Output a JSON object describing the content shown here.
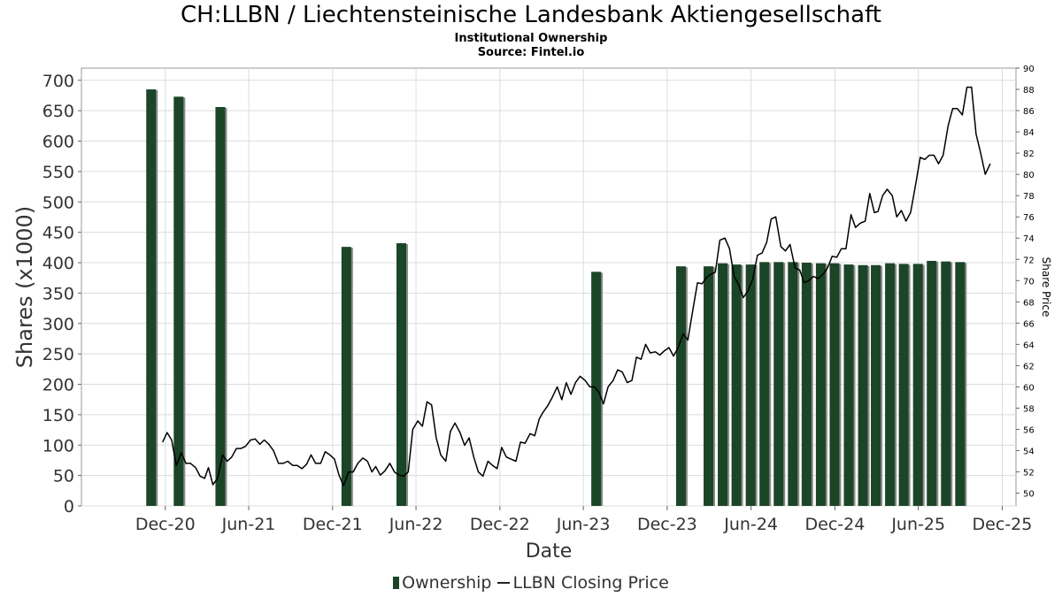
{
  "chart_data": {
    "type": "bar+line",
    "title": "CH:LLBN / Liechtensteinische Landesbank Aktiengesellschaft",
    "subtitle": "Institutional Ownership",
    "source": "Source: Fintel.io",
    "xlabel": "Date",
    "ylabel": "Shares (x1000)",
    "y2label": "Share Price",
    "x_ticks": [
      "Dec-20",
      "Jun-21",
      "Dec-21",
      "Jun-22",
      "Dec-22",
      "Jun-23",
      "Dec-23",
      "Jun-24",
      "Dec-24",
      "Jun-25",
      "Dec-25"
    ],
    "x_range": [
      "2020-06-01",
      "2025-12-31"
    ],
    "ylim": [
      0,
      720
    ],
    "y_ticks": [
      0,
      50,
      100,
      150,
      200,
      250,
      300,
      350,
      400,
      450,
      500,
      550,
      600,
      650,
      700
    ],
    "y2lim": [
      48.8,
      90
    ],
    "y2_ticks": [
      50,
      52,
      54,
      56,
      58,
      60,
      62,
      64,
      66,
      68,
      70,
      72,
      74,
      76,
      78,
      80,
      82,
      84,
      86,
      88,
      90
    ],
    "grid": true,
    "legend_position": "bottom",
    "series": [
      {
        "name": "Ownership",
        "kind": "bar",
        "color": "#1b4527",
        "points": [
          {
            "date": "2020-11-01",
            "value": 685
          },
          {
            "date": "2020-12-31",
            "value": 673
          },
          {
            "date": "2021-04-01",
            "value": 656
          },
          {
            "date": "2022-01-01",
            "value": 426
          },
          {
            "date": "2022-05-01",
            "value": 432
          },
          {
            "date": "2023-06-30",
            "value": 385
          },
          {
            "date": "2024-01-01",
            "value": 394
          },
          {
            "date": "2024-03-01",
            "value": 394
          },
          {
            "date": "2024-04-01",
            "value": 399
          },
          {
            "date": "2024-05-01",
            "value": 397
          },
          {
            "date": "2024-06-01",
            "value": 397
          },
          {
            "date": "2024-07-01",
            "value": 401
          },
          {
            "date": "2024-08-01",
            "value": 401
          },
          {
            "date": "2024-09-01",
            "value": 401
          },
          {
            "date": "2024-10-01",
            "value": 400
          },
          {
            "date": "2024-11-01",
            "value": 399
          },
          {
            "date": "2024-12-01",
            "value": 399
          },
          {
            "date": "2025-01-01",
            "value": 397
          },
          {
            "date": "2025-02-01",
            "value": 396
          },
          {
            "date": "2025-03-01",
            "value": 396
          },
          {
            "date": "2025-04-01",
            "value": 399
          },
          {
            "date": "2025-05-01",
            "value": 398
          },
          {
            "date": "2025-06-01",
            "value": 398
          },
          {
            "date": "2025-07-01",
            "value": 403
          },
          {
            "date": "2025-08-01",
            "value": 402
          },
          {
            "date": "2025-09-01",
            "value": 401
          }
        ]
      },
      {
        "name": "LLBN Closing Price",
        "kind": "line",
        "color": "#000000",
        "points": [
          {
            "date": "2020-11-25",
            "value": 54.8
          },
          {
            "date": "2020-12-05",
            "value": 55.7
          },
          {
            "date": "2020-12-15",
            "value": 55.0
          },
          {
            "date": "2020-12-25",
            "value": 52.6
          },
          {
            "date": "2021-01-05",
            "value": 53.8
          },
          {
            "date": "2021-01-15",
            "value": 52.8
          },
          {
            "date": "2021-01-25",
            "value": 52.8
          },
          {
            "date": "2021-02-05",
            "value": 52.4
          },
          {
            "date": "2021-02-15",
            "value": 51.6
          },
          {
            "date": "2021-02-25",
            "value": 51.4
          },
          {
            "date": "2021-03-05",
            "value": 52.4
          },
          {
            "date": "2021-03-15",
            "value": 50.8
          },
          {
            "date": "2021-03-25",
            "value": 51.4
          },
          {
            "date": "2021-04-05",
            "value": 53.6
          },
          {
            "date": "2021-04-15",
            "value": 53.0
          },
          {
            "date": "2021-04-25",
            "value": 53.4
          },
          {
            "date": "2021-05-05",
            "value": 54.2
          },
          {
            "date": "2021-05-15",
            "value": 54.2
          },
          {
            "date": "2021-05-25",
            "value": 54.4
          },
          {
            "date": "2021-06-05",
            "value": 55.0
          },
          {
            "date": "2021-06-15",
            "value": 55.1
          },
          {
            "date": "2021-06-25",
            "value": 54.6
          },
          {
            "date": "2021-07-05",
            "value": 55.0
          },
          {
            "date": "2021-07-15",
            "value": 54.6
          },
          {
            "date": "2021-07-25",
            "value": 54.0
          },
          {
            "date": "2021-08-05",
            "value": 52.8
          },
          {
            "date": "2021-08-15",
            "value": 52.8
          },
          {
            "date": "2021-08-25",
            "value": 53.0
          },
          {
            "date": "2021-09-05",
            "value": 52.6
          },
          {
            "date": "2021-09-15",
            "value": 52.6
          },
          {
            "date": "2021-09-25",
            "value": 52.3
          },
          {
            "date": "2021-10-05",
            "value": 52.7
          },
          {
            "date": "2021-10-15",
            "value": 53.6
          },
          {
            "date": "2021-10-25",
            "value": 52.8
          },
          {
            "date": "2021-11-05",
            "value": 52.8
          },
          {
            "date": "2021-11-15",
            "value": 53.9
          },
          {
            "date": "2021-11-25",
            "value": 53.6
          },
          {
            "date": "2021-12-05",
            "value": 53.2
          },
          {
            "date": "2021-12-15",
            "value": 51.7
          },
          {
            "date": "2021-12-25",
            "value": 50.7
          },
          {
            "date": "2022-01-05",
            "value": 52.0
          },
          {
            "date": "2022-01-15",
            "value": 52.0
          },
          {
            "date": "2022-01-25",
            "value": 52.8
          },
          {
            "date": "2022-02-05",
            "value": 53.3
          },
          {
            "date": "2022-02-15",
            "value": 53.0
          },
          {
            "date": "2022-02-25",
            "value": 52.0
          },
          {
            "date": "2022-03-05",
            "value": 52.5
          },
          {
            "date": "2022-03-15",
            "value": 51.7
          },
          {
            "date": "2022-03-25",
            "value": 52.1
          },
          {
            "date": "2022-04-05",
            "value": 52.8
          },
          {
            "date": "2022-04-15",
            "value": 52.0
          },
          {
            "date": "2022-04-25",
            "value": 51.7
          },
          {
            "date": "2022-05-05",
            "value": 51.6
          },
          {
            "date": "2022-05-15",
            "value": 52.0
          },
          {
            "date": "2022-05-25",
            "value": 56.0
          },
          {
            "date": "2022-06-05",
            "value": 56.8
          },
          {
            "date": "2022-06-15",
            "value": 56.3
          },
          {
            "date": "2022-06-25",
            "value": 58.6
          },
          {
            "date": "2022-07-05",
            "value": 58.3
          },
          {
            "date": "2022-07-15",
            "value": 55.2
          },
          {
            "date": "2022-07-25",
            "value": 53.6
          },
          {
            "date": "2022-08-05",
            "value": 53.0
          },
          {
            "date": "2022-08-15",
            "value": 55.8
          },
          {
            "date": "2022-08-25",
            "value": 56.6
          },
          {
            "date": "2022-09-05",
            "value": 55.7
          },
          {
            "date": "2022-09-15",
            "value": 54.5
          },
          {
            "date": "2022-09-25",
            "value": 55.2
          },
          {
            "date": "2022-10-05",
            "value": 53.4
          },
          {
            "date": "2022-10-15",
            "value": 52.0
          },
          {
            "date": "2022-10-25",
            "value": 51.6
          },
          {
            "date": "2022-11-05",
            "value": 53.0
          },
          {
            "date": "2022-11-15",
            "value": 52.6
          },
          {
            "date": "2022-11-25",
            "value": 52.3
          },
          {
            "date": "2022-12-05",
            "value": 54.3
          },
          {
            "date": "2022-12-15",
            "value": 53.4
          },
          {
            "date": "2022-12-25",
            "value": 53.2
          },
          {
            "date": "2023-01-05",
            "value": 53.0
          },
          {
            "date": "2023-01-15",
            "value": 54.8
          },
          {
            "date": "2023-01-25",
            "value": 54.7
          },
          {
            "date": "2023-02-05",
            "value": 55.6
          },
          {
            "date": "2023-02-15",
            "value": 55.4
          },
          {
            "date": "2023-02-25",
            "value": 57.0
          },
          {
            "date": "2023-03-05",
            "value": 57.6
          },
          {
            "date": "2023-03-15",
            "value": 58.2
          },
          {
            "date": "2023-03-25",
            "value": 59.0
          },
          {
            "date": "2023-04-05",
            "value": 60.0
          },
          {
            "date": "2023-04-15",
            "value": 58.8
          },
          {
            "date": "2023-04-25",
            "value": 60.4
          },
          {
            "date": "2023-05-05",
            "value": 59.3
          },
          {
            "date": "2023-05-15",
            "value": 60.4
          },
          {
            "date": "2023-05-25",
            "value": 61.0
          },
          {
            "date": "2023-06-05",
            "value": 60.6
          },
          {
            "date": "2023-06-15",
            "value": 60.0
          },
          {
            "date": "2023-06-25",
            "value": 60.0
          },
          {
            "date": "2023-07-05",
            "value": 59.5
          },
          {
            "date": "2023-07-15",
            "value": 58.4
          },
          {
            "date": "2023-07-25",
            "value": 60.0
          },
          {
            "date": "2023-08-05",
            "value": 60.6
          },
          {
            "date": "2023-08-15",
            "value": 61.6
          },
          {
            "date": "2023-08-25",
            "value": 61.4
          },
          {
            "date": "2023-09-05",
            "value": 60.4
          },
          {
            "date": "2023-09-15",
            "value": 60.6
          },
          {
            "date": "2023-09-25",
            "value": 62.8
          },
          {
            "date": "2023-10-05",
            "value": 62.6
          },
          {
            "date": "2023-10-15",
            "value": 64.0
          },
          {
            "date": "2023-10-25",
            "value": 63.2
          },
          {
            "date": "2023-11-05",
            "value": 63.3
          },
          {
            "date": "2023-11-15",
            "value": 63.0
          },
          {
            "date": "2023-11-25",
            "value": 63.4
          },
          {
            "date": "2023-12-05",
            "value": 63.7
          },
          {
            "date": "2023-12-15",
            "value": 62.9
          },
          {
            "date": "2023-12-25",
            "value": 63.7
          },
          {
            "date": "2024-01-05",
            "value": 65.0
          },
          {
            "date": "2024-01-15",
            "value": 64.4
          },
          {
            "date": "2024-01-25",
            "value": 67.0
          },
          {
            "date": "2024-02-05",
            "value": 69.8
          },
          {
            "date": "2024-02-15",
            "value": 69.7
          },
          {
            "date": "2024-02-25",
            "value": 70.3
          },
          {
            "date": "2024-03-05",
            "value": 70.6
          },
          {
            "date": "2024-03-15",
            "value": 70.8
          },
          {
            "date": "2024-03-25",
            "value": 73.8
          },
          {
            "date": "2024-04-05",
            "value": 74.0
          },
          {
            "date": "2024-04-15",
            "value": 73.0
          },
          {
            "date": "2024-04-25",
            "value": 70.4
          },
          {
            "date": "2024-05-05",
            "value": 69.6
          },
          {
            "date": "2024-05-15",
            "value": 68.4
          },
          {
            "date": "2024-05-25",
            "value": 69.0
          },
          {
            "date": "2024-06-05",
            "value": 70.2
          },
          {
            "date": "2024-06-15",
            "value": 72.4
          },
          {
            "date": "2024-06-25",
            "value": 72.6
          },
          {
            "date": "2024-07-05",
            "value": 73.6
          },
          {
            "date": "2024-07-15",
            "value": 75.8
          },
          {
            "date": "2024-07-25",
            "value": 76.0
          },
          {
            "date": "2024-08-05",
            "value": 73.2
          },
          {
            "date": "2024-08-15",
            "value": 72.8
          },
          {
            "date": "2024-08-25",
            "value": 73.4
          },
          {
            "date": "2024-09-05",
            "value": 71.2
          },
          {
            "date": "2024-09-15",
            "value": 71.0
          },
          {
            "date": "2024-09-25",
            "value": 69.8
          },
          {
            "date": "2024-10-05",
            "value": 70.0
          },
          {
            "date": "2024-10-15",
            "value": 70.4
          },
          {
            "date": "2024-10-25",
            "value": 70.2
          },
          {
            "date": "2024-11-05",
            "value": 70.6
          },
          {
            "date": "2024-11-15",
            "value": 71.2
          },
          {
            "date": "2024-11-25",
            "value": 72.3
          },
          {
            "date": "2024-12-05",
            "value": 72.2
          },
          {
            "date": "2024-12-15",
            "value": 73.0
          },
          {
            "date": "2024-12-25",
            "value": 73.0
          },
          {
            "date": "2025-01-05",
            "value": 76.2
          },
          {
            "date": "2025-01-15",
            "value": 75.0
          },
          {
            "date": "2025-01-25",
            "value": 75.4
          },
          {
            "date": "2025-02-05",
            "value": 75.6
          },
          {
            "date": "2025-02-15",
            "value": 78.2
          },
          {
            "date": "2025-02-25",
            "value": 76.4
          },
          {
            "date": "2025-03-05",
            "value": 76.5
          },
          {
            "date": "2025-03-15",
            "value": 78.0
          },
          {
            "date": "2025-03-25",
            "value": 78.6
          },
          {
            "date": "2025-04-05",
            "value": 78.0
          },
          {
            "date": "2025-04-15",
            "value": 76.0
          },
          {
            "date": "2025-04-25",
            "value": 76.6
          },
          {
            "date": "2025-05-05",
            "value": 75.6
          },
          {
            "date": "2025-05-15",
            "value": 76.4
          },
          {
            "date": "2025-05-25",
            "value": 78.8
          },
          {
            "date": "2025-06-05",
            "value": 81.6
          },
          {
            "date": "2025-06-15",
            "value": 81.4
          },
          {
            "date": "2025-06-25",
            "value": 81.8
          },
          {
            "date": "2025-07-05",
            "value": 81.8
          },
          {
            "date": "2025-07-15",
            "value": 81.0
          },
          {
            "date": "2025-07-25",
            "value": 81.8
          },
          {
            "date": "2025-08-05",
            "value": 84.6
          },
          {
            "date": "2025-08-15",
            "value": 86.2
          },
          {
            "date": "2025-08-25",
            "value": 86.2
          },
          {
            "date": "2025-09-05",
            "value": 85.6
          },
          {
            "date": "2025-09-15",
            "value": 88.2
          },
          {
            "date": "2025-09-25",
            "value": 88.2
          },
          {
            "date": "2025-10-05",
            "value": 83.8
          },
          {
            "date": "2025-10-15",
            "value": 82.0
          },
          {
            "date": "2025-10-25",
            "value": 80.0
          },
          {
            "date": "2025-11-05",
            "value": 81.0
          }
        ]
      }
    ]
  }
}
